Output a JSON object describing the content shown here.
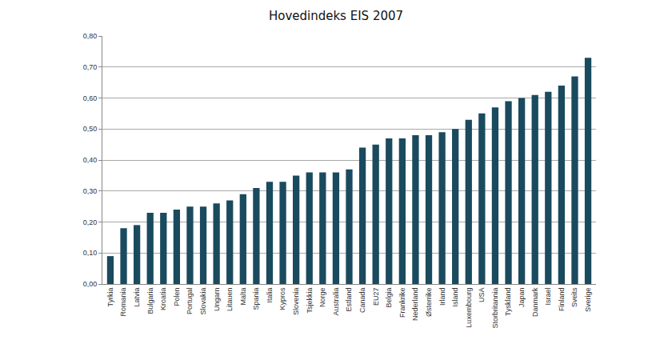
{
  "chart_data": {
    "type": "bar",
    "title": "Hovedindeks EIS 2007",
    "categories": [
      "Tyrkia",
      "Romania",
      "Latvia",
      "Bulgaria",
      "Kroatia",
      "Polen",
      "Portugal",
      "Slovakia",
      "Ungarn",
      "Litauen",
      "Malta",
      "Spania",
      "Italia",
      "Kypros",
      "Slovenia",
      "Tsjekkia",
      "Norge",
      "Australia",
      "Estland",
      "Canada",
      "EU27",
      "Belgia",
      "Frankrike",
      "Nederland",
      "Østerrike",
      "Irland",
      "Island",
      "Luxembourg",
      "USA",
      "Storbritannia",
      "Tyskland",
      "Japan",
      "Danmark",
      "Israel",
      "Finland",
      "Sveits",
      "Sverige"
    ],
    "values": [
      0.09,
      0.18,
      0.19,
      0.23,
      0.23,
      0.24,
      0.25,
      0.25,
      0.26,
      0.27,
      0.29,
      0.31,
      0.33,
      0.33,
      0.35,
      0.36,
      0.36,
      0.36,
      0.37,
      0.44,
      0.45,
      0.47,
      0.47,
      0.48,
      0.48,
      0.49,
      0.5,
      0.53,
      0.55,
      0.57,
      0.59,
      0.6,
      0.61,
      0.62,
      0.64,
      0.67,
      0.73
    ],
    "color": "#1a4a5e",
    "ylim": [
      0,
      0.8
    ],
    "yticks": [
      {
        "value": 0,
        "label": "0,00"
      },
      {
        "value": 0.1,
        "label": "0,10"
      },
      {
        "value": 0.2,
        "label": "0,20"
      },
      {
        "value": 0.3,
        "label": "0,30"
      },
      {
        "value": 0.4,
        "label": "0,40"
      },
      {
        "value": 0.5,
        "label": "0,50"
      },
      {
        "value": 0.6,
        "label": "0,60"
      },
      {
        "value": 0.7,
        "label": "0,70"
      },
      {
        "value": 0.8,
        "label": "0,80"
      }
    ],
    "grid": true
  }
}
